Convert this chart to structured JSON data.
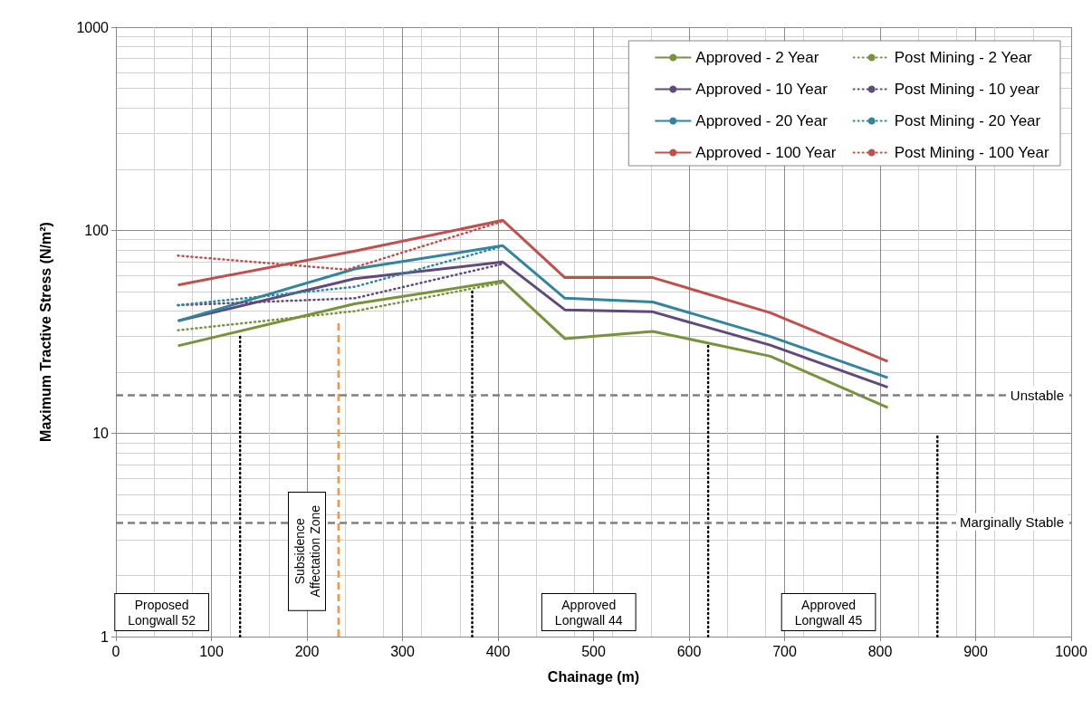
{
  "chart_data": {
    "type": "line",
    "xlabel": "Chainage (m)",
    "ylabel": "Maximum Tractive Stress (N/m²)",
    "log": "y",
    "xlim": [
      0,
      1000
    ],
    "xticks": [
      0,
      100,
      200,
      300,
      400,
      500,
      600,
      700,
      800,
      900,
      {
        "value": 1000,
        "label": "1000"
      }
    ],
    "ylim": [
      1,
      1000
    ],
    "yticks": [
      1,
      10,
      100,
      {
        "value": 1000,
        "label": "1000"
      }
    ],
    "grid": true,
    "legend": "top right",
    "marker": "none",
    "series": [
      {
        "name": "Approved - 2 Year",
        "color": "#77933c",
        "line_style": "solid",
        "x": [
          65,
          250,
          405,
          470,
          562,
          685,
          808
        ],
        "values": [
          27,
          43.5,
          56.3,
          29.3,
          31.8,
          24,
          13.4
        ]
      },
      {
        "name": "Approved - 10 Year",
        "color": "#604a7b",
        "line_style": "solid",
        "x": [
          65,
          250,
          405,
          470,
          562,
          685,
          808
        ],
        "values": [
          35.8,
          57.8,
          69.8,
          40.6,
          39.7,
          27.2,
          16.9
        ]
      },
      {
        "name": "Approved - 20 Year",
        "color": "#31859c",
        "line_style": "solid",
        "x": [
          65,
          250,
          405,
          470,
          562,
          685,
          808
        ],
        "values": [
          35.8,
          64.5,
          84,
          46.3,
          44.4,
          30,
          18.8
        ]
      },
      {
        "name": "Approved - 100 Year",
        "color": "#c0504d",
        "line_style": "solid",
        "x": [
          65,
          250,
          405,
          470,
          562,
          685,
          808
        ],
        "values": [
          53.8,
          79,
          112,
          58.5,
          58.5,
          39.3,
          22.6
        ]
      },
      {
        "name": "Post Mining - 2 Year",
        "color": "#77933c",
        "line_style": "dotted",
        "x": [
          65,
          250,
          403
        ],
        "values": [
          32.2,
          40,
          55
        ]
      },
      {
        "name": "Post Mining - 10 year",
        "color": "#604a7b",
        "line_style": "dotted",
        "x": [
          65,
          250,
          403
        ],
        "values": [
          42.8,
          46.3,
          68
        ]
      },
      {
        "name": "Post Mining - 20 Year",
        "color": "#31859c",
        "line_style": "dotted",
        "x": [
          65,
          250,
          403
        ],
        "values": [
          42.8,
          52.7,
          83
        ]
      },
      {
        "name": "Post Mining - 100 Year",
        "color": "#c0504d",
        "line_style": "dotted",
        "x": [
          65,
          242,
          403
        ],
        "values": [
          75,
          64,
          110
        ]
      },
      {
        "color": "#000000",
        "line_style": "dotted",
        "x": [
          130,
          130
        ],
        "values": [
          1,
          30
        ]
      },
      {
        "color": "#000000",
        "line_style": "dotted",
        "x": [
          373,
          373
        ],
        "values": [
          1,
          50
        ]
      },
      {
        "color": "#000000",
        "line_style": "dotted",
        "x": [
          620,
          620
        ],
        "values": [
          1,
          27
        ]
      },
      {
        "color": "#000000",
        "line_style": "dotted",
        "x": [
          860,
          860
        ],
        "values": [
          1,
          10
        ]
      },
      {
        "color": "#f79646",
        "line_style": "dashed",
        "x": [
          233,
          233
        ],
        "values": [
          1,
          36
        ]
      }
    ],
    "ref_lines": [
      {
        "axis": "y",
        "value": 15.4,
        "label": "Unstable",
        "color": "#808080",
        "line_style": "dashed"
      },
      {
        "axis": "y",
        "value": 3.65,
        "label": "Marginally Stable",
        "color": "#808080",
        "line_style": "dashed"
      }
    ],
    "annotations": [
      "Proposed\nLongwall 52",
      "Subsidence\nAffectation Zone",
      "Approved\nLongwall 44",
      "Approved\nLongwall 45"
    ]
  }
}
